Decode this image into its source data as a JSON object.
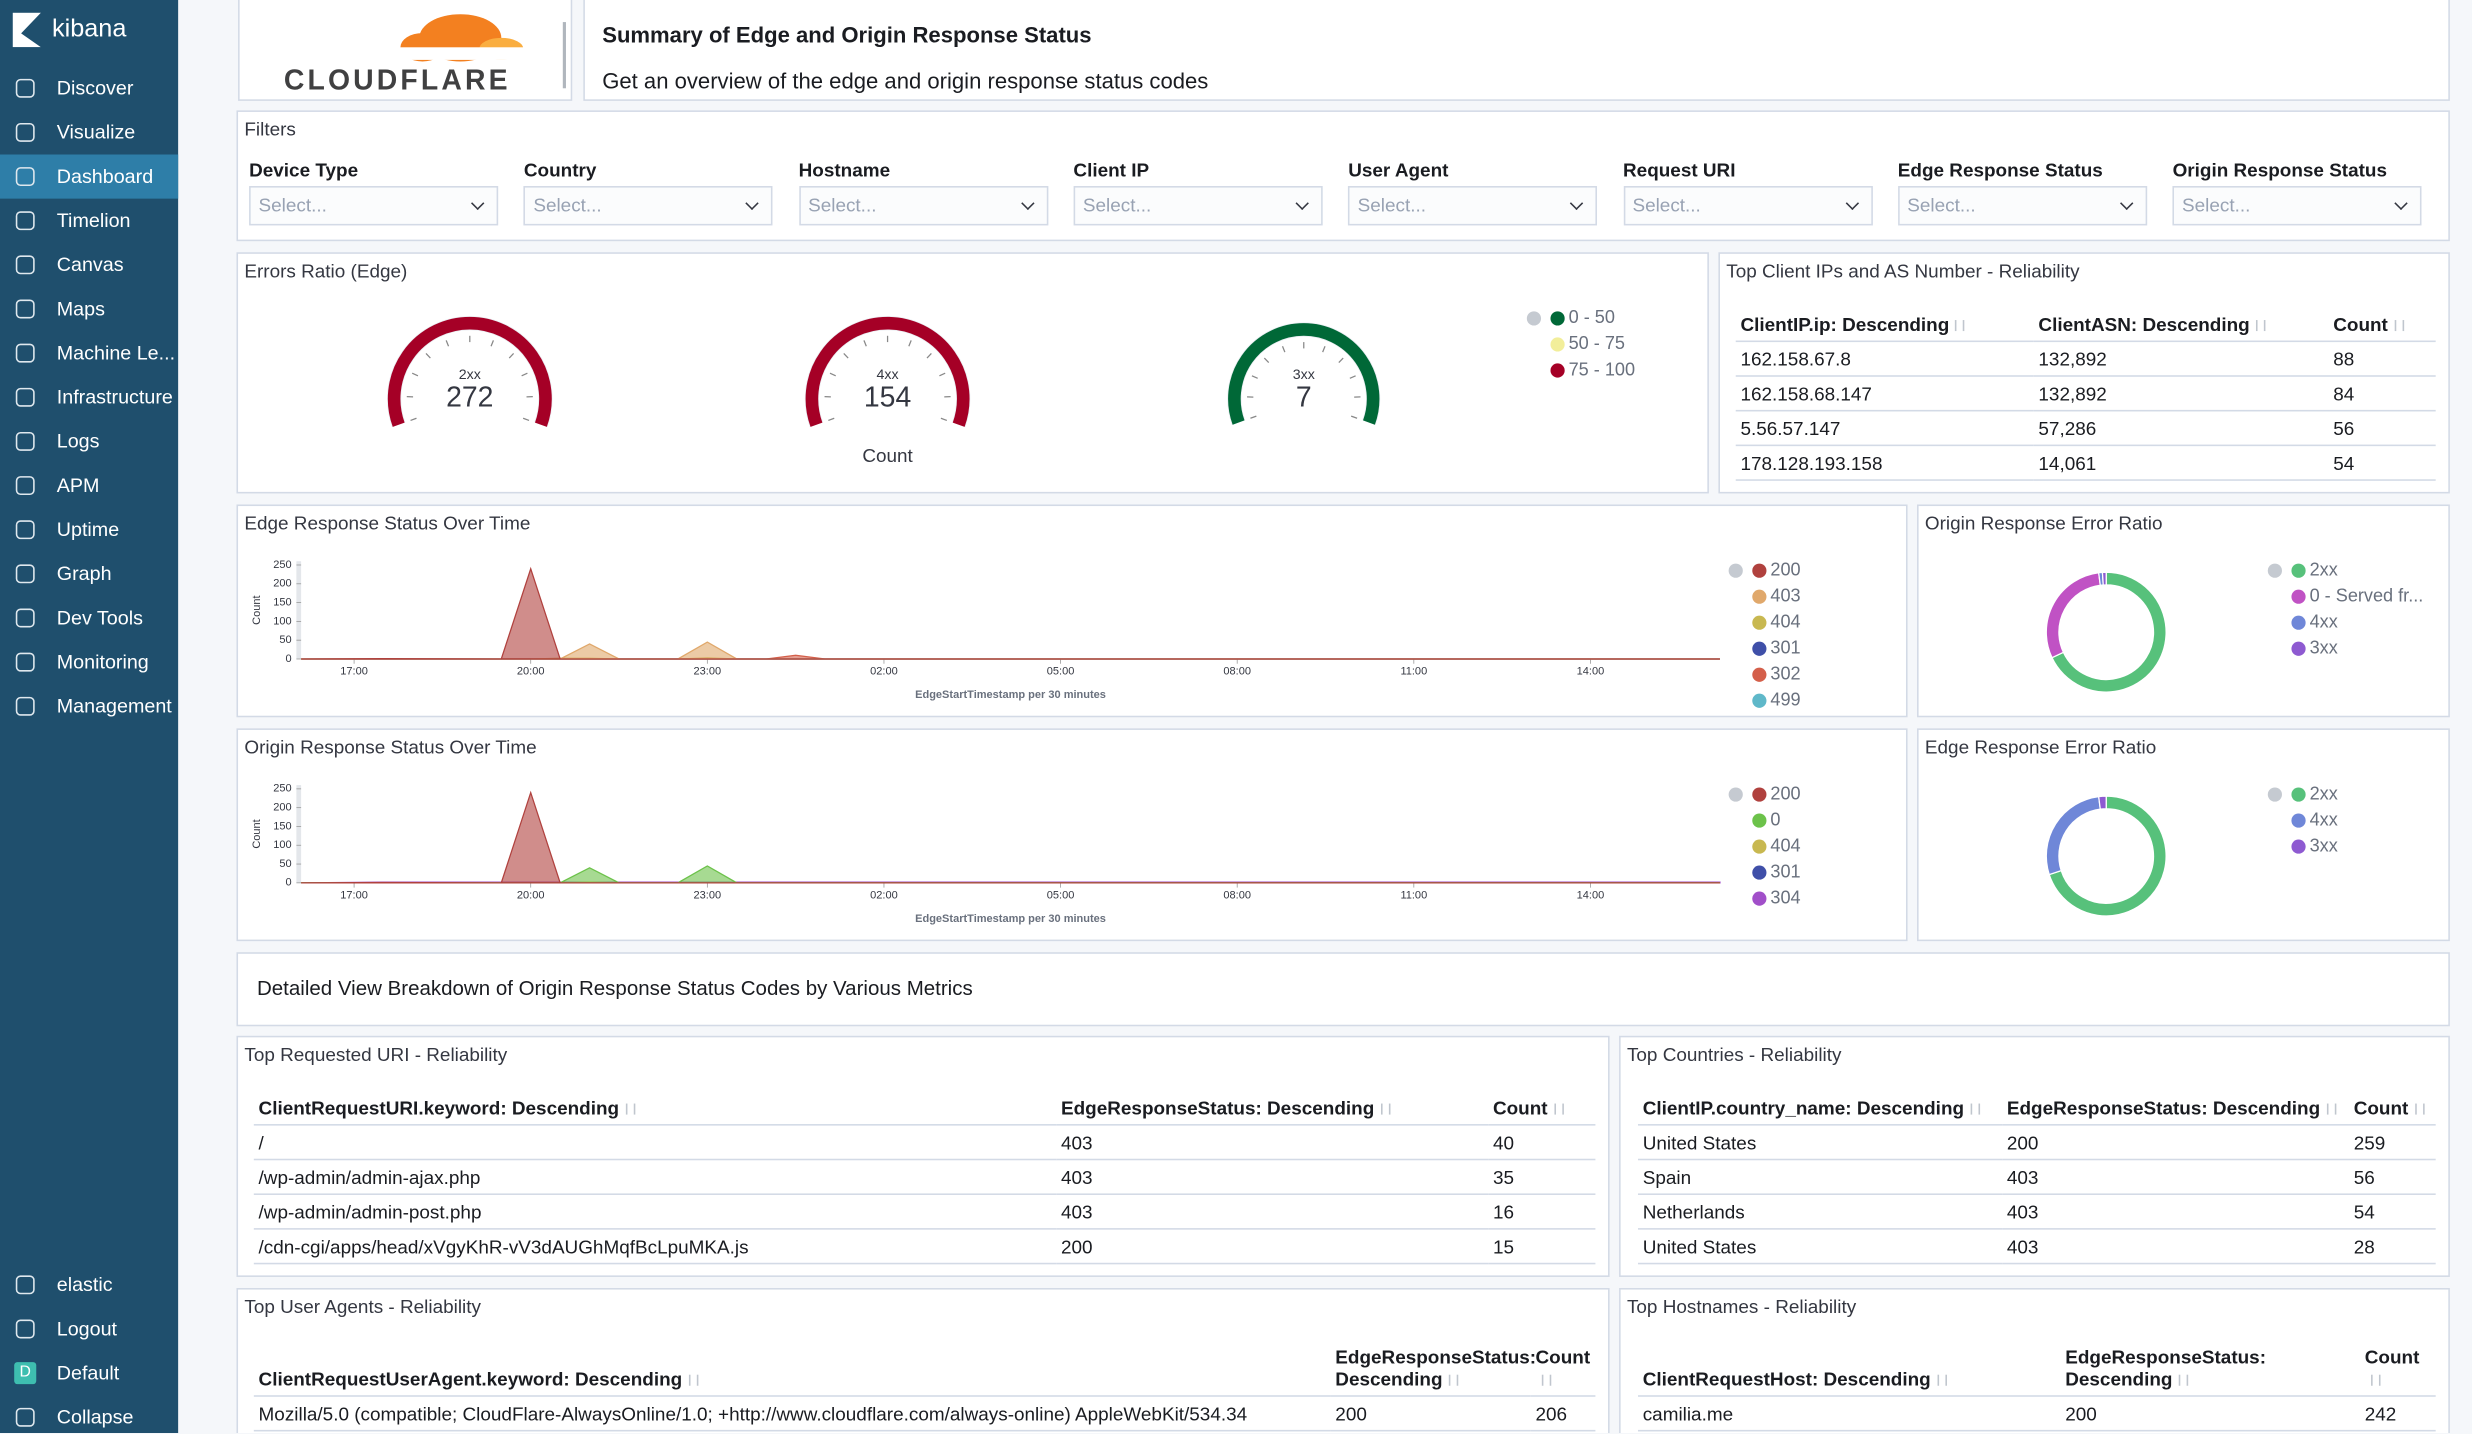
{
  "sidebar": {
    "brand": "kibana",
    "nav": [
      "Discover",
      "Visualize",
      "Dashboard",
      "Timelion",
      "Canvas",
      "Maps",
      "Machine Le...",
      "Infrastructure",
      "Logs",
      "APM",
      "Uptime",
      "Graph",
      "Dev Tools",
      "Monitoring",
      "Management"
    ],
    "bottom": [
      {
        "label": "elastic"
      },
      {
        "label": "Logout"
      },
      {
        "label": "Default",
        "badge": "D"
      },
      {
        "label": "Collapse"
      }
    ]
  },
  "header": {
    "logo": "CLOUDFLARE",
    "title": "Summary of Edge and Origin Response Status",
    "subtitle": "Get an overview of the edge and origin response status codes"
  },
  "filters": {
    "title": "Filters",
    "placeholder": "Select...",
    "fields": [
      "Device Type",
      "Country",
      "Hostname",
      "Client IP",
      "User Agent",
      "Request URI",
      "Edge Response Status",
      "Origin Response Status"
    ]
  },
  "errors_ratio": {
    "title": "Errors Ratio (Edge)",
    "caption": "Count",
    "gauges": [
      {
        "label": "2xx",
        "value": 272,
        "color": "#a50026"
      },
      {
        "label": "4xx",
        "value": 154,
        "color": "#a50026"
      },
      {
        "label": "3xx",
        "value": 7,
        "color": "#006837"
      }
    ],
    "legend": [
      {
        "name": "0 - 50",
        "color": "#006837"
      },
      {
        "name": "50 - 75",
        "color": "#f2ee9a"
      },
      {
        "name": "75 - 100",
        "color": "#a50026"
      }
    ]
  },
  "top_client_ips": {
    "title": "Top Client IPs and AS Number - Reliability",
    "columns": [
      "ClientIP.ip: Descending",
      "ClientASN: Descending",
      "Count"
    ],
    "rows": [
      [
        "162.158.67.8",
        "132,892",
        88
      ],
      [
        "162.158.68.147",
        "132,892",
        84
      ],
      [
        "5.56.57.147",
        "57,286",
        56
      ],
      [
        "178.128.193.158",
        "14,061",
        54
      ]
    ]
  },
  "edge_over_time": {
    "type": "area",
    "title": "Edge Response Status Over Time",
    "ylabel": "Count",
    "xlabel": "EdgeStartTimestamp per 30 minutes",
    "x": [
      16.1,
      17.5,
      19.5,
      20,
      20.5,
      21,
      21.5,
      22.5,
      23,
      23.5,
      24,
      24.5,
      25,
      40.2
    ],
    "xlim": [
      16.1,
      40.2
    ],
    "ylim": [
      0,
      260
    ],
    "yticks": [
      0,
      50,
      100,
      150,
      200,
      250
    ],
    "xticks": [
      {
        "value": 17,
        "label": "17:00"
      },
      {
        "value": 20,
        "label": "20:00"
      },
      {
        "value": 23,
        "label": "23:00"
      },
      {
        "value": 26,
        "label": "02:00"
      },
      {
        "value": 29,
        "label": "05:00"
      },
      {
        "value": 32,
        "label": "08:00"
      },
      {
        "value": 35,
        "label": "11:00"
      },
      {
        "value": 38,
        "label": "14:00"
      }
    ],
    "series": [
      {
        "name": "200",
        "color": "#b0413e",
        "values": [
          0,
          1,
          0,
          240,
          0,
          0,
          0,
          0,
          0,
          0,
          0,
          0,
          0,
          0
        ]
      },
      {
        "name": "403",
        "color": "#e0a86b",
        "values": [
          0,
          0,
          0,
          0,
          0,
          40,
          0,
          0,
          45,
          0,
          0,
          0,
          0,
          0
        ]
      },
      {
        "name": "404",
        "color": "#c8b850",
        "values": [
          0,
          0,
          0,
          0,
          2,
          2,
          0,
          0,
          3,
          0,
          0,
          0,
          0,
          0
        ]
      },
      {
        "name": "301",
        "color": "#3f4fa8",
        "values": [
          0,
          0,
          0,
          0,
          0,
          0,
          0,
          0,
          0,
          0,
          0,
          0,
          0,
          0
        ]
      },
      {
        "name": "302",
        "color": "#d45f4a",
        "values": [
          0,
          0,
          0,
          0,
          0,
          0,
          0,
          0,
          0,
          0,
          0,
          10,
          0,
          0
        ]
      },
      {
        "name": "499",
        "color": "#5fb8c9",
        "values": [
          0,
          0,
          0,
          0,
          0,
          0,
          0,
          0,
          0,
          0,
          0,
          0,
          0,
          0
        ]
      }
    ]
  },
  "origin_error_ratio": {
    "type": "donut",
    "title": "Origin Response Error Ratio",
    "categories": [
      "2xx",
      "0 - Served fr..."
    ],
    "values": [
      68,
      30,
      1,
      1
    ],
    "legend_names": [
      "2xx",
      "0 - Served fr...",
      "4xx",
      "3xx"
    ],
    "colors": [
      "#57c17b",
      "#c052c4",
      "#6f87d8",
      "#8e5ad1"
    ]
  },
  "origin_over_time": {
    "type": "area",
    "title": "Origin Response Status Over Time",
    "ylabel": "Count",
    "xlabel": "EdgeStartTimestamp per 30 minutes",
    "x": [
      16.1,
      17.5,
      19.5,
      20,
      20.5,
      21,
      21.5,
      22.5,
      23,
      23.5,
      24,
      24.5,
      25,
      40.2
    ],
    "xlim": [
      16.1,
      40.2
    ],
    "ylim": [
      0,
      260
    ],
    "yticks": [
      0,
      50,
      100,
      150,
      200,
      250
    ],
    "xticks": [
      {
        "value": 17,
        "label": "17:00"
      },
      {
        "value": 20,
        "label": "20:00"
      },
      {
        "value": 23,
        "label": "23:00"
      },
      {
        "value": 26,
        "label": "02:00"
      },
      {
        "value": 29,
        "label": "05:00"
      },
      {
        "value": 32,
        "label": "08:00"
      },
      {
        "value": 35,
        "label": "11:00"
      },
      {
        "value": 38,
        "label": "14:00"
      }
    ],
    "series": [
      {
        "name": "200",
        "color": "#b0413e",
        "values": [
          0,
          1,
          0,
          240,
          0,
          0,
          0,
          0,
          0,
          0,
          0,
          0,
          0,
          0
        ]
      },
      {
        "name": "0",
        "color": "#6cc24a",
        "values": [
          0,
          0,
          0,
          0,
          0,
          40,
          0,
          0,
          45,
          0,
          0,
          0,
          0,
          0
        ]
      },
      {
        "name": "404",
        "color": "#c8b850",
        "values": [
          0,
          0,
          0,
          0,
          0,
          2,
          0,
          0,
          0,
          0,
          0,
          0,
          0,
          0
        ]
      },
      {
        "name": "301",
        "color": "#3f4fa8",
        "values": [
          0,
          0,
          0,
          0,
          0,
          0,
          0,
          0,
          0,
          0,
          0,
          0,
          0,
          0
        ]
      },
      {
        "name": "304",
        "color": "#a14fc9",
        "values": [
          0,
          2,
          2,
          2,
          2,
          2,
          2,
          2,
          2,
          2,
          2,
          2,
          2,
          2
        ]
      }
    ]
  },
  "edge_error_ratio": {
    "type": "donut",
    "title": "Edge Response Error Ratio",
    "values": [
      70,
      28,
      2
    ],
    "legend_names": [
      "2xx",
      "4xx",
      "3xx"
    ],
    "colors": [
      "#57c17b",
      "#6f87d8",
      "#8e5ad1"
    ]
  },
  "detail": {
    "text": "Detailed View Breakdown of Origin Response Status Codes by Various Metrics"
  },
  "top_uri": {
    "title": "Top Requested URI - Reliability",
    "columns": [
      "ClientRequestURI.keyword: Descending",
      "EdgeResponseStatus: Descending",
      "Count"
    ],
    "rows": [
      [
        "/",
        403,
        40
      ],
      [
        "/wp-admin/admin-ajax.php",
        403,
        35
      ],
      [
        "/wp-admin/admin-post.php",
        403,
        16
      ],
      [
        "/cdn-cgi/apps/head/xVgyKhR-vV3dAUGhMqfBcLpuMKA.js",
        200,
        15
      ]
    ]
  },
  "top_countries": {
    "title": "Top Countries - Reliability",
    "columns": [
      "ClientIP.country_name: Descending",
      "EdgeResponseStatus: Descending",
      "Count"
    ],
    "rows": [
      [
        "United States",
        200,
        259
      ],
      [
        "Spain",
        403,
        56
      ],
      [
        "Netherlands",
        403,
        54
      ],
      [
        "United States",
        403,
        28
      ]
    ]
  },
  "top_user_agents": {
    "title": "Top User Agents - Reliability",
    "columns": [
      "ClientRequestUserAgent.keyword: Descending",
      "EdgeResponseStatus: Descending",
      "Count"
    ],
    "rows": [
      [
        "Mozilla/5.0 (compatible; CloudFlare-AlwaysOnline/1.0; +http://www.cloudflare.com/always-online) AppleWebKit/534.34",
        200,
        206
      ]
    ]
  },
  "top_hostnames": {
    "title": "Top Hostnames - Reliability",
    "columns": [
      "ClientRequestHost: Descending",
      "EdgeResponseStatus: Descending",
      "Count"
    ],
    "rows": [
      [
        "camilia.me",
        200,
        242
      ]
    ]
  }
}
